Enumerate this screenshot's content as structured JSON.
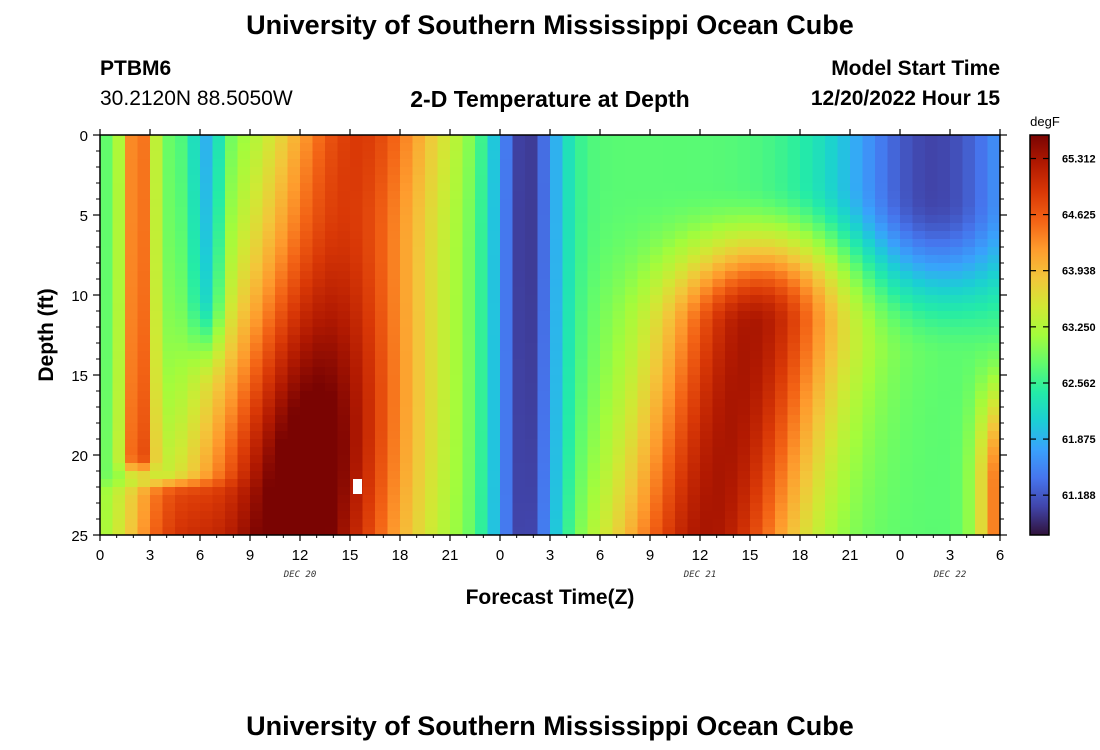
{
  "page": {
    "title_top": "University of Southern Mississippi Ocean Cube",
    "title_bottom": "University of Southern Mississippi Ocean Cube",
    "station": "PTBM6",
    "coords": "30.2120N  88.5050W",
    "plot_title": "2-D Temperature at Depth",
    "model_start_label": "Model Start Time",
    "model_start_value": "12/20/2022 Hour 15"
  },
  "chart_data": {
    "type": "heatmap",
    "title": "2-D Temperature at Depth",
    "xlabel": "Forecast Time(Z)",
    "ylabel": "Depth (ft)",
    "x_ticks": [
      "0",
      "3",
      "6",
      "9",
      "12",
      "15",
      "18",
      "21",
      "0",
      "3",
      "6",
      "9",
      "12",
      "15",
      "18",
      "21",
      "0",
      "3",
      "6"
    ],
    "x_range_hours": [
      0,
      54
    ],
    "y_ticks": [
      "0",
      "5",
      "10",
      "15",
      "20",
      "25"
    ],
    "ylim": [
      0,
      25
    ],
    "y_inverted": true,
    "date_labels": [
      {
        "text": "DEC 20",
        "hour": 12
      },
      {
        "text": "DEC 21",
        "hour": 36
      },
      {
        "text": "DEC 22",
        "hour": 51
      }
    ],
    "colorbar": {
      "unit": "degF",
      "min": 60.7,
      "max": 65.6,
      "ticks": [
        "65.312",
        "64.625",
        "63.938",
        "63.250",
        "62.562",
        "61.875",
        "61.188"
      ],
      "colors": [
        "#30123b",
        "#4145ab",
        "#4675ed",
        "#39a2fc",
        "#1bcfd4",
        "#24eca6",
        "#61fc6c",
        "#a4fc3b",
        "#d1e834",
        "#f3c63a",
        "#fe9b2d",
        "#f36315",
        "#d93806",
        "#b11901",
        "#7a0402"
      ]
    }
  }
}
